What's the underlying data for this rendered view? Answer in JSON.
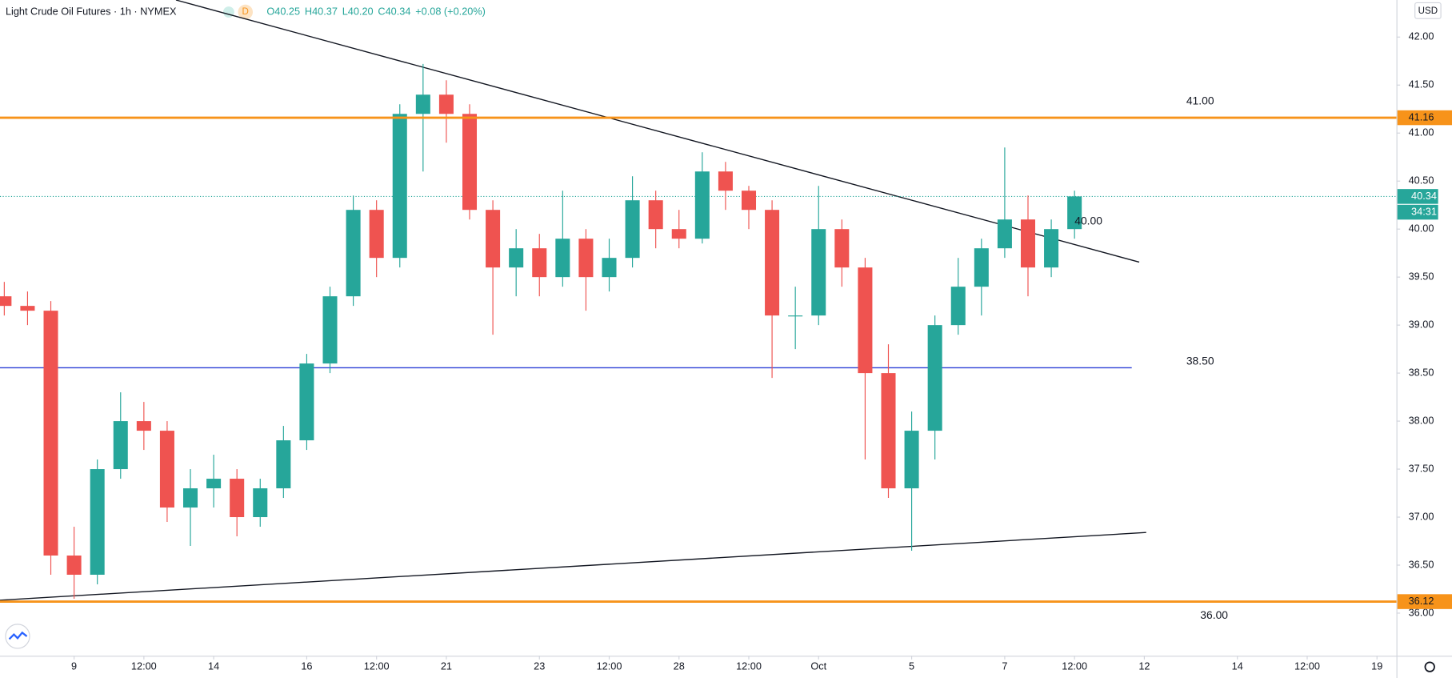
{
  "header": {
    "title": "Light Crude Oil Futures · 1h · NYMEX",
    "badge": "D",
    "ohlc": [
      "O40.25",
      "H40.37",
      "L40.20",
      "C40.34",
      "+0.08 (+0.20%)"
    ],
    "currency": "USD",
    "countdown": "34:31"
  },
  "chart_data": {
    "type": "candlestick",
    "up_color": "#26a69a",
    "down_color": "#ef5350",
    "x": [
      -1.5,
      -1,
      -0.5,
      0,
      0.5,
      1,
      1.5,
      2,
      2.5,
      3,
      3.5,
      4,
      4.5,
      5,
      5.5,
      6,
      6.5,
      7,
      7.5,
      8,
      8.5,
      9,
      9.5,
      10,
      10.5,
      11,
      11.5,
      12,
      12.5,
      13,
      13.5,
      14,
      14.5,
      15,
      15.5,
      16,
      16.5,
      17,
      17.5,
      18,
      18.5,
      19,
      19.5,
      20,
      20.5,
      21,
      21.5
    ],
    "open": [
      39.3,
      39.2,
      39.15,
      36.6,
      36.4,
      37.5,
      38.0,
      37.9,
      37.1,
      37.3,
      37.4,
      37.0,
      37.3,
      37.8,
      38.6,
      39.3,
      40.2,
      39.7,
      41.2,
      41.4,
      41.2,
      40.2,
      39.6,
      39.8,
      39.5,
      39.9,
      39.5,
      39.7,
      40.3,
      40.0,
      39.9,
      40.6,
      40.4,
      40.2,
      39.1,
      39.1,
      40.0,
      39.6,
      38.5,
      37.3,
      37.9,
      39.0,
      39.4,
      39.8,
      40.1,
      39.6,
      40.0
    ],
    "high": [
      39.45,
      39.35,
      39.25,
      36.9,
      37.6,
      38.3,
      38.2,
      38.0,
      37.5,
      37.65,
      37.5,
      37.4,
      37.95,
      38.7,
      39.4,
      40.35,
      40.3,
      41.3,
      41.72,
      41.55,
      41.3,
      40.3,
      40.0,
      39.95,
      40.4,
      40.0,
      39.9,
      40.55,
      40.4,
      40.2,
      40.8,
      40.7,
      40.45,
      40.3,
      39.4,
      40.45,
      40.1,
      39.7,
      38.8,
      38.1,
      39.1,
      39.7,
      39.9,
      40.85,
      40.35,
      40.1,
      40.4
    ],
    "low": [
      39.1,
      39.0,
      36.4,
      36.15,
      36.3,
      37.4,
      37.7,
      36.95,
      36.7,
      37.1,
      36.8,
      36.9,
      37.2,
      37.7,
      38.5,
      39.2,
      39.5,
      39.6,
      40.6,
      40.9,
      40.1,
      38.9,
      39.3,
      39.3,
      39.4,
      39.15,
      39.35,
      39.6,
      39.8,
      39.8,
      39.85,
      40.2,
      40.0,
      38.45,
      38.75,
      39.0,
      39.4,
      37.6,
      37.2,
      36.65,
      37.6,
      38.9,
      39.1,
      39.7,
      39.3,
      39.5,
      39.9
    ],
    "close": [
      39.2,
      39.15,
      36.6,
      36.4,
      37.5,
      38.0,
      37.9,
      37.1,
      37.3,
      37.4,
      37.0,
      37.3,
      37.8,
      38.6,
      39.3,
      40.2,
      39.7,
      41.2,
      41.4,
      41.2,
      40.2,
      39.6,
      39.8,
      39.5,
      39.9,
      39.5,
      39.7,
      40.3,
      40.0,
      39.9,
      40.6,
      40.4,
      40.2,
      39.1,
      39.1,
      40.0,
      39.6,
      38.5,
      37.3,
      37.9,
      39.0,
      39.4,
      39.8,
      40.1,
      39.6,
      40.0,
      40.34
    ],
    "xlim": [
      -1.592,
      28.418
    ],
    "xticks": [
      {
        "value": 0,
        "label": "9"
      },
      {
        "value": 1.5,
        "label": "12:00"
      },
      {
        "value": 3,
        "label": "14"
      },
      {
        "value": 5,
        "label": "16"
      },
      {
        "value": 6.5,
        "label": "12:00"
      },
      {
        "value": 8,
        "label": "21"
      },
      {
        "value": 10,
        "label": "23"
      },
      {
        "value": 11.5,
        "label": "12:00"
      },
      {
        "value": 13,
        "label": "28"
      },
      {
        "value": 14.5,
        "label": "12:00"
      },
      {
        "value": 16,
        "label": "Oct"
      },
      {
        "value": 18,
        "label": "5"
      },
      {
        "value": 20,
        "label": "7"
      },
      {
        "value": 21.5,
        "label": "12:00"
      },
      {
        "value": 23,
        "label": "12"
      },
      {
        "value": 25,
        "label": "14"
      },
      {
        "value": 26.5,
        "label": "12:00"
      },
      {
        "value": 28,
        "label": "19"
      }
    ],
    "ylim": [
      35.556,
      42.386
    ],
    "yticks": [
      {
        "value": 36,
        "label": "36.00"
      },
      {
        "value": 36.5,
        "label": "36.50"
      },
      {
        "value": 37,
        "label": "37.00"
      },
      {
        "value": 37.5,
        "label": "37.50"
      },
      {
        "value": 38,
        "label": "38.00"
      },
      {
        "value": 38.5,
        "label": "38.50"
      },
      {
        "value": 39,
        "label": "39.00"
      },
      {
        "value": 39.5,
        "label": "39.50"
      },
      {
        "value": 40,
        "label": "40.00"
      },
      {
        "value": 40.5,
        "label": "40.50"
      },
      {
        "value": 41,
        "label": "41.00"
      },
      {
        "value": 41.5,
        "label": "41.50"
      },
      {
        "value": 42,
        "label": "42.00"
      }
    ],
    "hlines": [
      {
        "value": 41.16,
        "color": "#f7931a"
      },
      {
        "value": 36.12,
        "color": "#f7931a"
      }
    ],
    "level_line": {
      "value": 38.556,
      "x_end": 22.73,
      "color": "#2b3fd6"
    },
    "trendlines": [
      {
        "x": [
          2.19,
          22.89
        ],
        "y": [
          42.386,
          39.656
        ]
      },
      {
        "x": [
          -1.592,
          23.04
        ],
        "y": [
          36.135,
          36.84
        ]
      }
    ],
    "annotations": [
      {
        "text": "41.00",
        "x": 24.2,
        "y": 41.33
      },
      {
        "text": "40.00",
        "x": 21.8,
        "y": 40.08
      },
      {
        "text": "38.50",
        "x": 24.2,
        "y": 38.62
      },
      {
        "text": "36.00",
        "x": 24.5,
        "y": 35.97
      }
    ],
    "last_price": 40.34,
    "last_color": "#26a69a"
  }
}
